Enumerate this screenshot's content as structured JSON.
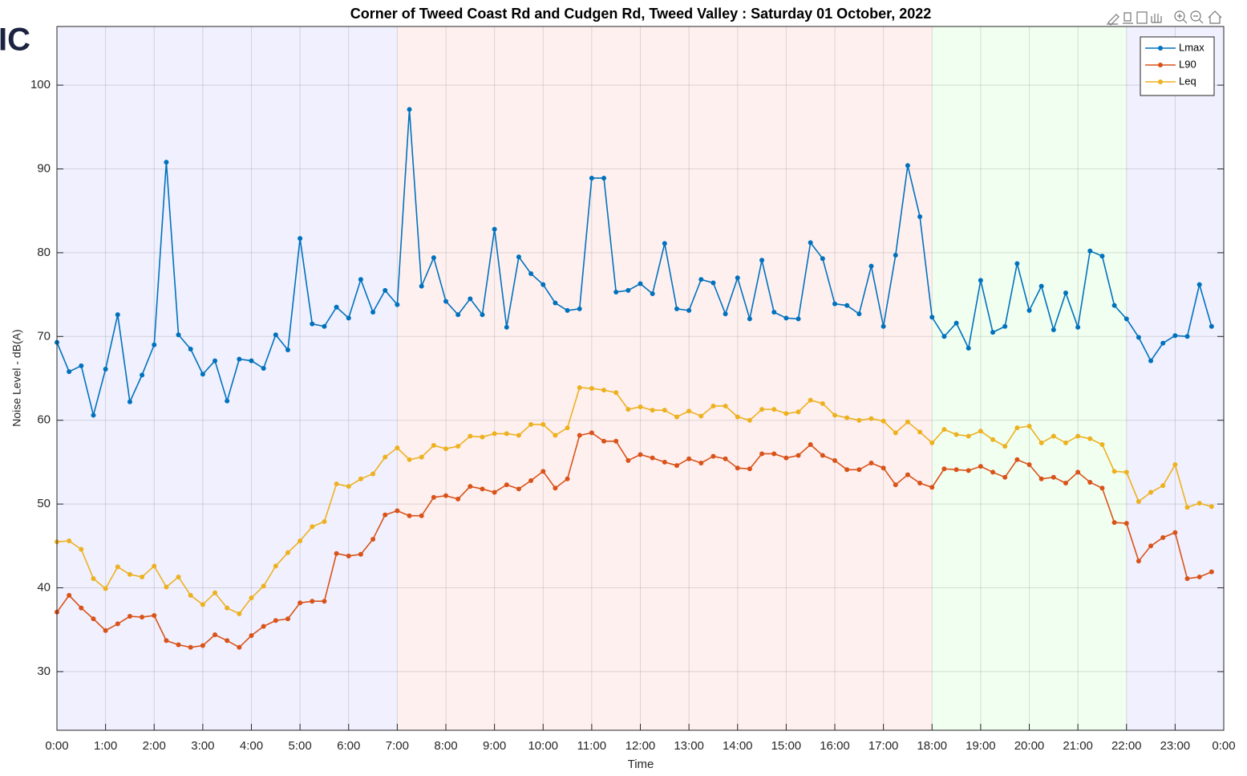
{
  "logo_text": "IC",
  "chart_data": {
    "type": "line",
    "title": "Corner of Tweed Coast Rd and Cudgen Rd, Tweed Valley :  Saturday 01 October, 2022",
    "x_label": "Time",
    "y_label": "Noise Level - dB(A)",
    "xlim": [
      0,
      24
    ],
    "ylim": [
      23,
      107
    ],
    "grid": true,
    "legend": "northeast",
    "bands": [
      {
        "start": 0,
        "end": 7,
        "color": "#f0f0fe"
      },
      {
        "start": 7,
        "end": 18,
        "color": "#fff0f0"
      },
      {
        "start": 18,
        "end": 22,
        "color": "#f0fff0"
      },
      {
        "start": 22,
        "end": 24,
        "color": "#f0f0fe"
      }
    ],
    "xticks": [
      {
        "value": 0,
        "label": "0:00"
      },
      {
        "value": 1,
        "label": "1:00"
      },
      {
        "value": 2,
        "label": "2:00"
      },
      {
        "value": 3,
        "label": "3:00"
      },
      {
        "value": 4,
        "label": "4:00"
      },
      {
        "value": 5,
        "label": "5:00"
      },
      {
        "value": 6,
        "label": "6:00"
      },
      {
        "value": 7,
        "label": "7:00"
      },
      {
        "value": 8,
        "label": "8:00"
      },
      {
        "value": 9,
        "label": "9:00"
      },
      {
        "value": 10,
        "label": "10:00"
      },
      {
        "value": 11,
        "label": "11:00"
      },
      {
        "value": 12,
        "label": "12:00"
      },
      {
        "value": 13,
        "label": "13:00"
      },
      {
        "value": 14,
        "label": "14:00"
      },
      {
        "value": 15,
        "label": "15:00"
      },
      {
        "value": 16,
        "label": "16:00"
      },
      {
        "value": 17,
        "label": "17:00"
      },
      {
        "value": 18,
        "label": "18:00"
      },
      {
        "value": 19,
        "label": "19:00"
      },
      {
        "value": 20,
        "label": "20:00"
      },
      {
        "value": 21,
        "label": "21:00"
      },
      {
        "value": 22,
        "label": "22:00"
      },
      {
        "value": 23,
        "label": "23:00"
      },
      {
        "value": 24,
        "label": "0:00"
      }
    ],
    "yticks": [
      30,
      40,
      50,
      60,
      70,
      80,
      90,
      100
    ],
    "x": [
      0,
      0.25,
      0.5,
      0.75,
      1,
      1.25,
      1.5,
      1.75,
      2,
      2.25,
      2.5,
      2.75,
      3,
      3.25,
      3.5,
      3.75,
      4,
      4.25,
      4.5,
      4.75,
      5,
      5.25,
      5.5,
      5.75,
      6,
      6.25,
      6.5,
      6.75,
      7,
      7.25,
      7.5,
      7.75,
      8,
      8.25,
      8.5,
      8.75,
      9,
      9.25,
      9.5,
      9.75,
      10,
      10.25,
      10.5,
      10.75,
      11,
      11.25,
      11.5,
      11.75,
      12,
      12.25,
      12.5,
      12.75,
      13,
      13.25,
      13.5,
      13.75,
      14,
      14.25,
      14.5,
      14.75,
      15,
      15.25,
      15.5,
      15.75,
      16,
      16.25,
      16.5,
      16.75,
      17,
      17.25,
      17.5,
      17.75,
      18,
      18.25,
      18.5,
      18.75,
      19,
      19.25,
      19.5,
      19.75,
      20,
      20.25,
      20.5,
      20.75,
      21,
      21.25,
      21.5,
      21.75,
      22,
      22.25,
      22.5,
      22.75,
      23,
      23.25,
      23.5,
      23.75
    ],
    "series": [
      {
        "name": "Lmax",
        "color": "#0072bd",
        "values": [
          69.3,
          65.8,
          66.5,
          60.6,
          66.1,
          72.6,
          62.2,
          65.4,
          69.0,
          90.8,
          70.2,
          68.5,
          65.5,
          67.1,
          62.3,
          67.3,
          67.1,
          66.2,
          70.2,
          68.4,
          81.7,
          71.5,
          71.2,
          73.5,
          72.2,
          76.8,
          72.9,
          75.5,
          73.8,
          97.1,
          76.0,
          79.4,
          74.2,
          72.6,
          74.5,
          72.6,
          82.8,
          71.1,
          79.5,
          77.5,
          76.2,
          74.0,
          73.1,
          73.3,
          88.9,
          88.9,
          75.3,
          75.5,
          76.3,
          75.1,
          81.1,
          73.3,
          73.1,
          76.8,
          76.4,
          72.7,
          77.0,
          72.1,
          79.1,
          72.9,
          72.2,
          72.1,
          81.2,
          79.3,
          73.9,
          73.7,
          72.7,
          78.4,
          71.2,
          79.7,
          90.4,
          84.3,
          72.3,
          70.0,
          71.6,
          68.6,
          76.7,
          70.5,
          71.2,
          78.7,
          73.1,
          76.0,
          70.8,
          75.2,
          71.1,
          80.2,
          79.6,
          73.7,
          72.1,
          69.9,
          67.1,
          69.2,
          70.1,
          70.0,
          76.2,
          71.2
        ]
      },
      {
        "name": "L90",
        "color": "#d95319",
        "values": [
          37.1,
          39.1,
          37.6,
          36.3,
          34.9,
          35.7,
          36.6,
          36.5,
          36.7,
          33.7,
          33.2,
          32.9,
          33.1,
          34.4,
          33.7,
          32.9,
          34.3,
          35.4,
          36.1,
          36.3,
          38.2,
          38.4,
          38.4,
          44.1,
          43.8,
          44.0,
          45.8,
          48.7,
          49.2,
          48.6,
          48.6,
          50.8,
          51.0,
          50.6,
          52.1,
          51.8,
          51.4,
          52.3,
          51.8,
          52.8,
          53.9,
          51.9,
          53.0,
          58.2,
          58.5,
          57.5,
          57.5,
          55.2,
          55.9,
          55.5,
          55.0,
          54.6,
          55.4,
          54.9,
          55.7,
          55.4,
          54.3,
          54.2,
          56.0,
          56.0,
          55.5,
          55.8,
          57.1,
          55.8,
          55.2,
          54.1,
          54.1,
          54.9,
          54.3,
          52.3,
          53.5,
          52.5,
          52.0,
          54.2,
          54.1,
          54.0,
          54.5,
          53.8,
          53.2,
          55.3,
          54.7,
          53.0,
          53.2,
          52.5,
          53.8,
          52.6,
          51.9,
          47.8,
          47.7,
          43.2,
          45.0,
          46.0,
          46.6,
          41.1,
          41.3,
          41.9
        ]
      },
      {
        "name": "Leq",
        "color": "#edb120",
        "values": [
          45.5,
          45.6,
          44.6,
          41.1,
          39.9,
          42.5,
          41.6,
          41.3,
          42.6,
          40.1,
          41.3,
          39.1,
          38.0,
          39.4,
          37.6,
          36.9,
          38.8,
          40.2,
          42.6,
          44.2,
          45.6,
          47.3,
          47.9,
          52.4,
          52.1,
          53.0,
          53.6,
          55.6,
          56.7,
          55.3,
          55.6,
          57.0,
          56.6,
          56.9,
          58.1,
          58.0,
          58.4,
          58.4,
          58.2,
          59.5,
          59.5,
          58.2,
          59.1,
          63.9,
          63.8,
          63.6,
          63.3,
          61.3,
          61.6,
          61.2,
          61.2,
          60.4,
          61.1,
          60.5,
          61.7,
          61.7,
          60.4,
          60.0,
          61.3,
          61.3,
          60.8,
          61.0,
          62.4,
          62.0,
          60.6,
          60.3,
          60.0,
          60.2,
          59.9,
          58.5,
          59.8,
          58.6,
          57.3,
          58.9,
          58.3,
          58.1,
          58.7,
          57.7,
          56.9,
          59.1,
          59.3,
          57.3,
          58.1,
          57.3,
          58.1,
          57.8,
          57.1,
          53.9,
          53.8,
          50.3,
          51.4,
          52.2,
          54.7,
          49.6,
          50.1,
          49.7
        ]
      }
    ]
  }
}
